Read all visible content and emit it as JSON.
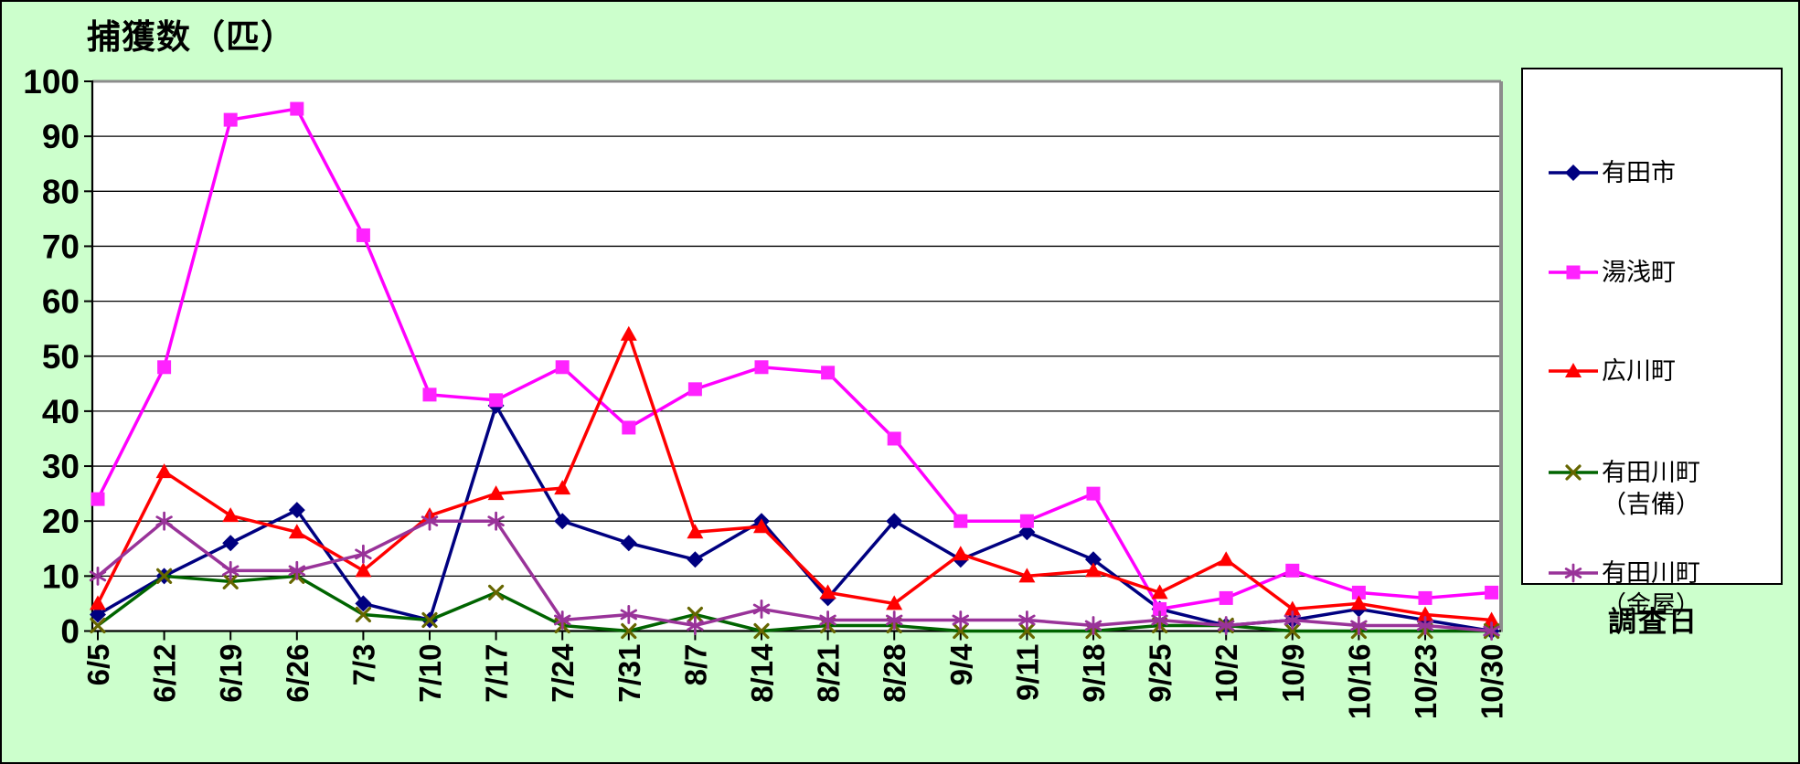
{
  "title": "捕獲数（匹）",
  "x_axis_title": "調査日",
  "background_color": "#CCFFCC",
  "plot_background": "#FFFFFF",
  "chart_data": {
    "type": "line",
    "title": "捕獲数（匹）",
    "xlabel": "調査日",
    "ylabel": "",
    "ylim": [
      0,
      100
    ],
    "y_ticks": [
      0,
      10,
      20,
      30,
      40,
      50,
      60,
      70,
      80,
      90,
      100
    ],
    "grid": true,
    "legend_position": "right",
    "categories": [
      "6/5",
      "6/12",
      "6/19",
      "6/26",
      "7/3",
      "7/10",
      "7/17",
      "7/24",
      "7/31",
      "8/7",
      "8/14",
      "8/21",
      "8/28",
      "9/4",
      "9/11",
      "9/18",
      "9/25",
      "10/2",
      "10/9",
      "10/16",
      "10/23",
      "10/30"
    ],
    "series": [
      {
        "name": "有田市",
        "legend_lines": [
          "有田市"
        ],
        "color": "#000080",
        "marker": "diamond",
        "marker_color": "#000080",
        "values": [
          3,
          10,
          16,
          22,
          5,
          2,
          41,
          20,
          16,
          13,
          20,
          6,
          20,
          13,
          18,
          13,
          4,
          1,
          2,
          4,
          2,
          0
        ]
      },
      {
        "name": "湯浅町",
        "legend_lines": [
          "湯浅町"
        ],
        "color": "#FF00FF",
        "marker": "square",
        "marker_color": "#FF22FF",
        "values": [
          24,
          48,
          93,
          95,
          72,
          43,
          42,
          48,
          37,
          44,
          48,
          47,
          35,
          20,
          20,
          25,
          4,
          6,
          11,
          7,
          6,
          7
        ]
      },
      {
        "name": "広川町",
        "legend_lines": [
          "広川町"
        ],
        "color": "#FF0000",
        "marker": "triangle",
        "marker_color": "#FF0000",
        "values": [
          5,
          29,
          21,
          18,
          11,
          21,
          25,
          26,
          54,
          18,
          19,
          7,
          5,
          14,
          10,
          11,
          7,
          13,
          4,
          5,
          3,
          2
        ]
      },
      {
        "name": "有田川町（吉備）",
        "legend_lines": [
          "有田川町",
          "（吉備）"
        ],
        "color": "#006400",
        "marker": "x",
        "marker_color": "#666600",
        "values": [
          1,
          10,
          9,
          10,
          3,
          2,
          7,
          1,
          0,
          3,
          0,
          1,
          1,
          0,
          0,
          0,
          1,
          1,
          0,
          0,
          0,
          0
        ]
      },
      {
        "name": "有田川町（金屋）",
        "legend_lines": [
          "有田川町",
          "（金屋）"
        ],
        "color": "#993399",
        "marker": "asterisk",
        "marker_color": "#993399",
        "values": [
          10,
          20,
          11,
          11,
          14,
          20,
          20,
          2,
          3,
          1,
          4,
          2,
          2,
          2,
          2,
          1,
          2,
          1,
          2,
          1,
          1,
          0
        ]
      }
    ]
  }
}
